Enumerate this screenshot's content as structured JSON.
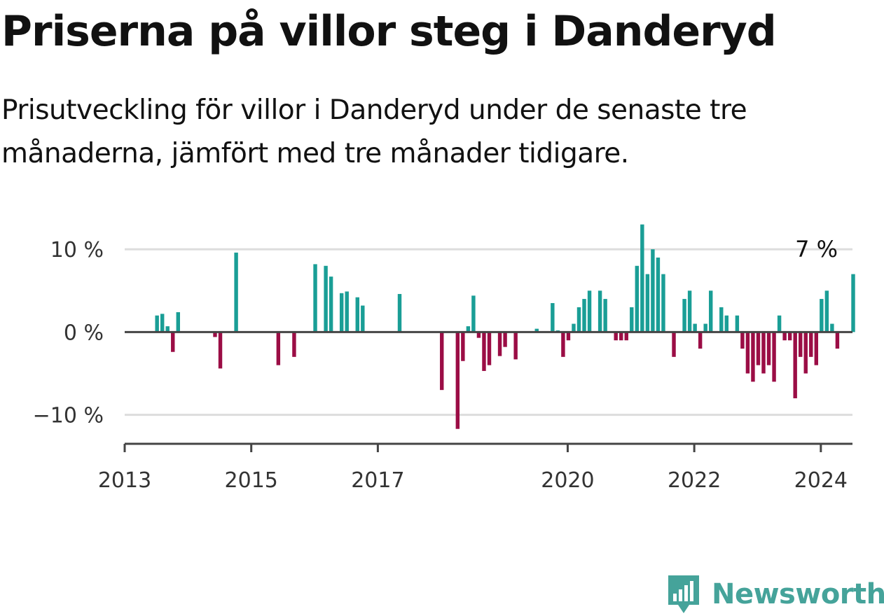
{
  "title": "Priserna på villor steg i Danderyd",
  "subtitle": "Prisutveckling för villor i Danderyd under de senaste tre månaderna, jämfört med tre månader tidigare.",
  "last_value_label": "7 %",
  "brand": {
    "name": "Newsworthy"
  },
  "colors": {
    "positive": "#1a9e96",
    "negative": "#9b0d45",
    "brand": "#45a39a",
    "grid": "#dddddd",
    "axis": "#444444"
  },
  "chart_data": {
    "type": "bar",
    "title": "Priserna på villor steg i Danderyd",
    "xlabel": "",
    "ylabel": "",
    "ylim": [
      -13.5,
      15
    ],
    "xlim": [
      "2013-01",
      "2024-07"
    ],
    "grid": true,
    "y_ticks": [
      {
        "value": 10,
        "label": "10 %"
      },
      {
        "value": 0,
        "label": "0 %"
      },
      {
        "value": -10,
        "label": "−10 %"
      }
    ],
    "x_ticks": [
      {
        "value": "2013-01",
        "label": "2013"
      },
      {
        "value": "2015-01",
        "label": "2015"
      },
      {
        "value": "2017-01",
        "label": "2017"
      },
      {
        "value": "2020-01",
        "label": "2020"
      },
      {
        "value": "2022-01",
        "label": "2022"
      },
      {
        "value": "2024-01",
        "label": "2024"
      }
    ],
    "series": [
      {
        "values": [
          [
            "2013-07",
            2.0
          ],
          [
            "2013-08",
            2.2
          ],
          [
            "2013-09",
            0.7
          ],
          [
            "2013-10",
            -2.4
          ],
          [
            "2013-11",
            2.4
          ],
          [
            "2014-06",
            -0.6
          ],
          [
            "2014-07",
            -4.4
          ],
          [
            "2014-10",
            9.6
          ],
          [
            "2015-06",
            -4.0
          ],
          [
            "2015-09",
            -3.0
          ],
          [
            "2016-01",
            8.2
          ],
          [
            "2016-03",
            8.0
          ],
          [
            "2016-04",
            6.7
          ],
          [
            "2016-06",
            4.7
          ],
          [
            "2016-07",
            4.9
          ],
          [
            "2016-09",
            4.2
          ],
          [
            "2016-10",
            3.2
          ],
          [
            "2017-05",
            4.6
          ],
          [
            "2018-01",
            -7.0
          ],
          [
            "2018-04",
            -11.7
          ],
          [
            "2018-05",
            -3.5
          ],
          [
            "2018-06",
            0.7
          ],
          [
            "2018-07",
            4.4
          ],
          [
            "2018-08",
            -0.7
          ],
          [
            "2018-09",
            -4.7
          ],
          [
            "2018-10",
            -4.0
          ],
          [
            "2018-12",
            -2.9
          ],
          [
            "2019-01",
            -1.8
          ],
          [
            "2019-03",
            -3.3
          ],
          [
            "2019-07",
            0.4
          ],
          [
            "2019-10",
            3.5
          ],
          [
            "2019-11",
            0.2
          ],
          [
            "2019-12",
            -3.0
          ],
          [
            "2020-01",
            -1.0
          ],
          [
            "2020-02",
            1.0
          ],
          [
            "2020-03",
            3.0
          ],
          [
            "2020-04",
            4.0
          ],
          [
            "2020-05",
            5.0
          ],
          [
            "2020-07",
            5.0
          ],
          [
            "2020-08",
            4.0
          ],
          [
            "2020-10",
            -1.0
          ],
          [
            "2020-11",
            -1.0
          ],
          [
            "2020-12",
            -1.0
          ],
          [
            "2021-01",
            3.0
          ],
          [
            "2021-02",
            8.0
          ],
          [
            "2021-03",
            13.0
          ],
          [
            "2021-04",
            7.0
          ],
          [
            "2021-05",
            10.0
          ],
          [
            "2021-06",
            9.0
          ],
          [
            "2021-07",
            7.0
          ],
          [
            "2021-09",
            -3.0
          ],
          [
            "2021-11",
            4.0
          ],
          [
            "2021-12",
            5.0
          ],
          [
            "2022-01",
            1.0
          ],
          [
            "2022-02",
            -2.0
          ],
          [
            "2022-03",
            1.0
          ],
          [
            "2022-04",
            5.0
          ],
          [
            "2022-06",
            3.0
          ],
          [
            "2022-07",
            2.0
          ],
          [
            "2022-09",
            2.0
          ],
          [
            "2022-10",
            -2.0
          ],
          [
            "2022-11",
            -5.0
          ],
          [
            "2022-12",
            -6.0
          ],
          [
            "2023-01",
            -4.0
          ],
          [
            "2023-02",
            -5.0
          ],
          [
            "2023-03",
            -4.0
          ],
          [
            "2023-04",
            -6.0
          ],
          [
            "2023-05",
            2.0
          ],
          [
            "2023-06",
            -1.0
          ],
          [
            "2023-07",
            -1.0
          ],
          [
            "2023-08",
            -8.0
          ],
          [
            "2023-09",
            -3.0
          ],
          [
            "2023-10",
            -5.0
          ],
          [
            "2023-11",
            -3.0
          ],
          [
            "2023-12",
            -4.0
          ],
          [
            "2024-01",
            4.0
          ],
          [
            "2024-02",
            5.0
          ],
          [
            "2024-03",
            1.0
          ],
          [
            "2024-04",
            -2.0
          ],
          [
            "2024-07",
            7.0
          ]
        ]
      }
    ]
  }
}
